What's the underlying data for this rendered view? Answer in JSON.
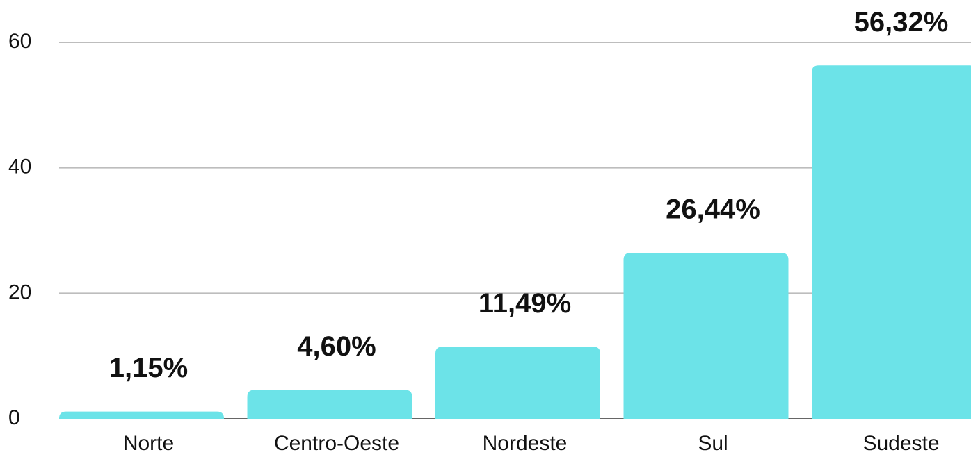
{
  "chart_data": {
    "type": "bar",
    "categories": [
      "Norte",
      "Centro-Oeste",
      "Nordeste",
      "Sul",
      "Sudeste"
    ],
    "values": [
      1.15,
      4.6,
      11.49,
      26.44,
      56.32
    ],
    "value_labels": [
      "1,15%",
      "4,60%",
      "11,49%",
      "26,44%",
      "56,32%"
    ],
    "color": "#6ce3e8",
    "ylim": [
      0,
      60
    ],
    "yticks": [
      0,
      20,
      40,
      60
    ],
    "grid": true
  }
}
